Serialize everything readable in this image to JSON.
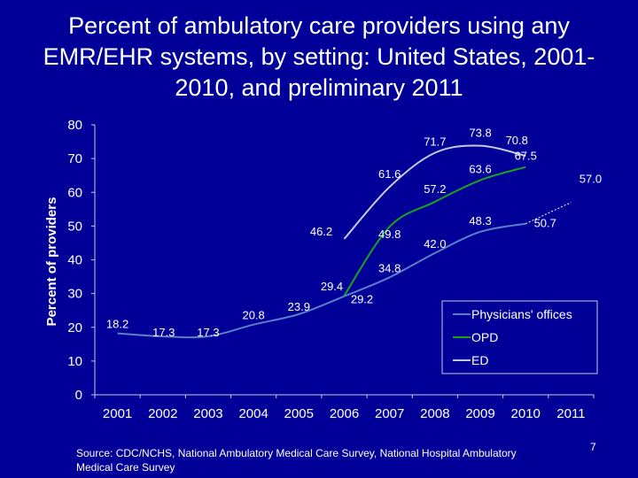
{
  "slide": {
    "title": "Percent of ambulatory care providers using any EMR/EHR systems, by setting: United States, 2001-2010, and preliminary 2011",
    "source": "Source: CDC/NCHS, National Ambulatory Medical Care Survey, National Hospital Ambulatory Medical Care Survey",
    "page_number": "7"
  },
  "chart_data": {
    "type": "line",
    "title": "",
    "xlabel": "",
    "ylabel": "Percent of providers",
    "categories": [
      "2001",
      "2002",
      "2003",
      "2004",
      "2005",
      "2006",
      "2007",
      "2008",
      "2009",
      "2010",
      "2011"
    ],
    "ylim": [
      0,
      80
    ],
    "yticks": [
      0,
      10,
      20,
      30,
      40,
      50,
      60,
      70,
      80
    ],
    "grid": false,
    "legend_position": "bottom-right",
    "series": [
      {
        "name": "Physicians' offices",
        "color": "#5b7fc8",
        "values": [
          18.2,
          17.3,
          17.3,
          20.8,
          23.9,
          29.2,
          34.8,
          42.0,
          48.3,
          50.7,
          57.0
        ],
        "labels": [
          "18.2",
          "17.3",
          "17.3",
          "20.8",
          "23.9",
          "29.2",
          "34.8",
          "42.0",
          "48.3",
          "50.7",
          "57.0"
        ],
        "preliminary_last_point": true
      },
      {
        "name": "OPD",
        "color": "#19a31e",
        "values": [
          null,
          null,
          null,
          null,
          null,
          29.4,
          49.8,
          57.2,
          63.6,
          67.5,
          null
        ],
        "labels": [
          "",
          "",
          "",
          "",
          "",
          "29.4",
          "49.8",
          "57.2",
          "63.6",
          "67.5",
          ""
        ]
      },
      {
        "name": "ED",
        "color": "#c8c8dc",
        "values": [
          null,
          null,
          null,
          null,
          null,
          46.2,
          61.6,
          71.7,
          73.8,
          70.8,
          null
        ],
        "labels": [
          "",
          "",
          "",
          "",
          "",
          "46.2",
          "61.6",
          "71.7",
          "73.8",
          "70.8",
          ""
        ]
      }
    ]
  }
}
